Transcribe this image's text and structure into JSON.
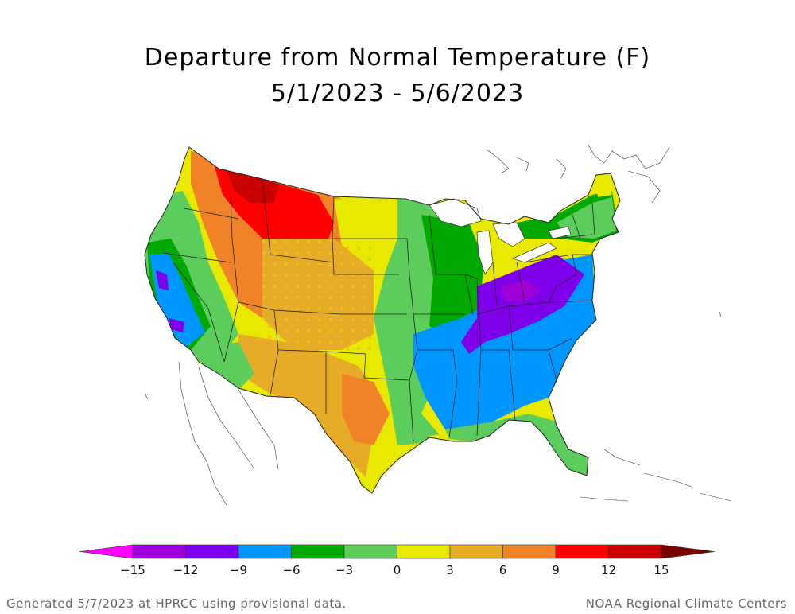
{
  "title": {
    "line1": "Departure from Normal Temperature (F)",
    "line2": "5/1/2023 - 5/6/2023"
  },
  "legend": {
    "units": "F",
    "bins": [
      {
        "from": -18,
        "to": -15,
        "color": "#ff00ff"
      },
      {
        "from": -15,
        "to": -12,
        "color": "#a000d8"
      },
      {
        "from": -12,
        "to": -9,
        "color": "#7e00ea"
      },
      {
        "from": -9,
        "to": -6,
        "color": "#0096ff"
      },
      {
        "from": -6,
        "to": -3,
        "color": "#00a800"
      },
      {
        "from": -3,
        "to": 0,
        "color": "#5ccd5c"
      },
      {
        "from": 0,
        "to": 3,
        "color": "#e8e800"
      },
      {
        "from": 3,
        "to": 6,
        "color": "#e6ac28"
      },
      {
        "from": 6,
        "to": 9,
        "color": "#f08228"
      },
      {
        "from": 9,
        "to": 12,
        "color": "#ff0000"
      },
      {
        "from": 12,
        "to": 15,
        "color": "#c80000"
      },
      {
        "from": 15,
        "to": 18,
        "color": "#7a0000"
      }
    ],
    "tick_labels": [
      "-15",
      "-12",
      "-9",
      "-6",
      "-3",
      "0",
      "3",
      "6",
      "9",
      "12",
      "15"
    ]
  },
  "map": {
    "region": "Contiguous United States",
    "regions": [
      {
        "name": "Northern Rockies / Montana",
        "departure_class": "+9 to +15"
      },
      {
        "name": "Northern Plains",
        "departure_class": "+3 to +9"
      },
      {
        "name": "Southwest / Texas",
        "departure_class": "0 to +6"
      },
      {
        "name": "Pacific Coast",
        "departure_class": "-9 to -3"
      },
      {
        "name": "Mississippi Valley",
        "departure_class": "-6 to -3"
      },
      {
        "name": "Southeast",
        "departure_class": "-9 to -6"
      },
      {
        "name": "Ohio Valley / Appalachians",
        "departure_class": "-15 to -9"
      },
      {
        "name": "Northeast / New England",
        "departure_class": "-6 to 0"
      }
    ]
  },
  "footer": {
    "left": "Generated 5/7/2023 at HPRCC using provisional data.",
    "right": "NOAA Regional Climate Centers"
  }
}
